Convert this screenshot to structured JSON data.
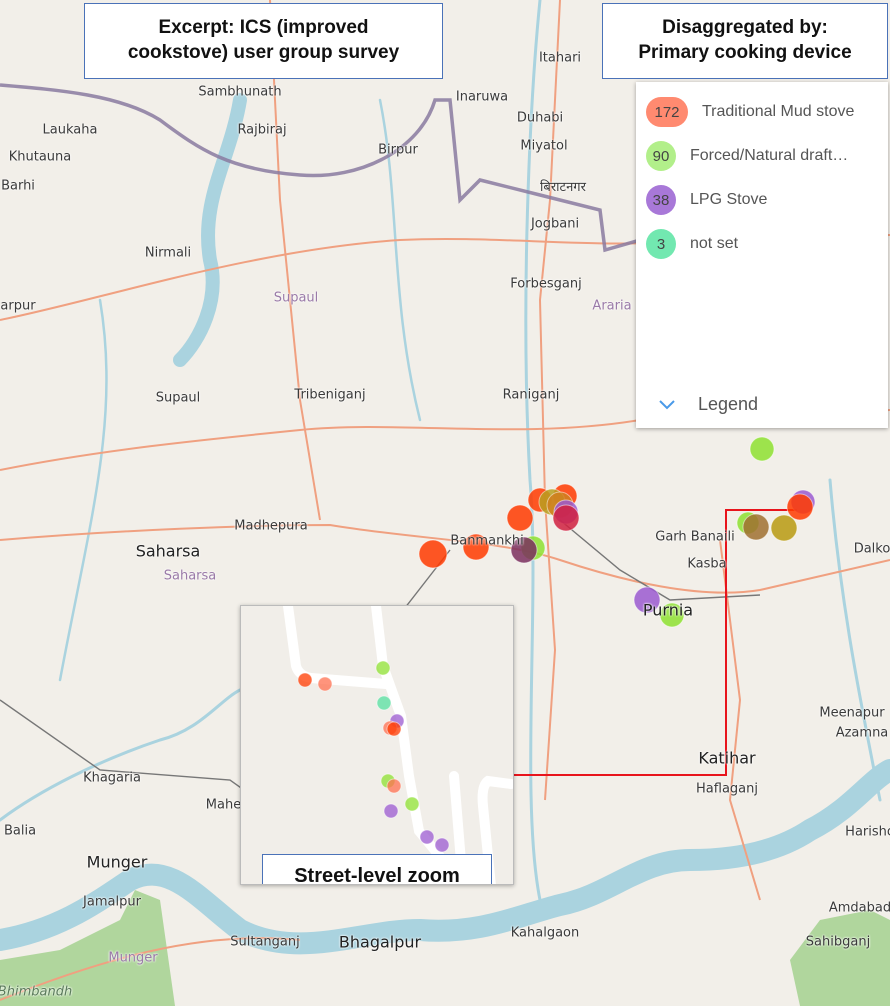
{
  "title_box": {
    "text_line1": "Excerpt: ICS (improved",
    "text_line2": "cookstove) user group survey"
  },
  "disaggregation_box": {
    "text_line1": "Disaggregated by:",
    "text_line2": "Primary cooking device"
  },
  "legend": {
    "toggle_label": "Legend",
    "items": [
      {
        "count": "172",
        "label": "Traditional Mud stove",
        "color": "#ff8a70"
      },
      {
        "count": "90",
        "label": "Forced/Natural draft…",
        "color": "#b2ef8a"
      },
      {
        "count": "38",
        "label": "LPG Stove",
        "color": "#a878d8"
      },
      {
        "count": "3",
        "label": "not set",
        "color": "#72e8b0"
      }
    ]
  },
  "inset": {
    "label": "Street-level zoom"
  },
  "colors": {
    "callout_border": "#4a72b8",
    "arrow": "#e8141c",
    "water": "#aad3df",
    "road": "#f0a080",
    "border": "#8a7aa0",
    "forest": "#9fd08a"
  },
  "map": {
    "places": [
      "Itahari",
      "Sambhunath",
      "Inaruwa",
      "Laukaha",
      "Rajbiraj",
      "Birpur",
      "Duhabi",
      "Khutauna",
      "Miyatol",
      "Barhi",
      "बिराटनगर",
      "Jogbani",
      "Nirmali",
      "Forbesganj",
      "Supaul",
      "arpur",
      "Araria",
      "Tribeniganj",
      "Supaul",
      "Raniganj",
      "Madhepura",
      "Saharsa",
      "Saharsa",
      "Banmankhi",
      "Garh Banaili",
      "Kasba",
      "Purnia",
      "Dalko",
      "Meenapur",
      "Katihar",
      "Azamna",
      "Haflaganj",
      "Harisho",
      "Khagaria",
      "Maheshkhu",
      "Balia",
      "Munger",
      "Jamalpur",
      "Amdabad",
      "Sultanganj",
      "Bhagalpur",
      "Kahalgaon",
      "Sahibganj",
      "Munger",
      "Bhimbandh"
    ]
  }
}
